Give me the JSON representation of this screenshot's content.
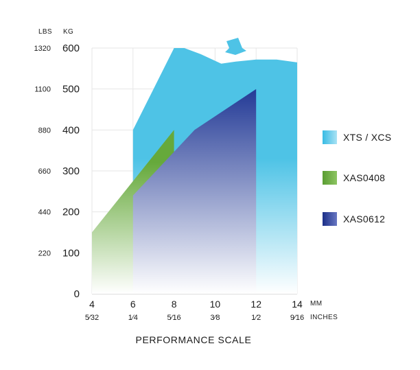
{
  "chart_data": {
    "type": "area",
    "title": "",
    "xlabel": "PERFORMANCE SCALE",
    "x_unit_primary": "MM",
    "x_unit_secondary": "INCHES",
    "y_unit_left": "LBS",
    "y_unit_right": "KG",
    "xlim": [
      4,
      14
    ],
    "ylim": [
      0,
      600
    ],
    "x_ticks": [
      {
        "mm": "4",
        "inch": "5⁄32"
      },
      {
        "mm": "6",
        "inch": "1⁄4"
      },
      {
        "mm": "8",
        "inch": "5⁄16"
      },
      {
        "mm": "10",
        "inch": "3⁄8"
      },
      {
        "mm": "12",
        "inch": "1⁄2"
      },
      {
        "mm": "14",
        "inch": "9⁄16"
      }
    ],
    "y_ticks_kg": [
      "0",
      "100",
      "200",
      "300",
      "400",
      "500",
      "600"
    ],
    "y_ticks_lbs": [
      "",
      "220",
      "440",
      "660",
      "880",
      "1100",
      "1320"
    ],
    "grid": true,
    "legend_position": "right",
    "series": [
      {
        "name": "XTS / XCS",
        "color_top": "#4ec3e6",
        "color_bottom": "#ffffff",
        "x": [
          6,
          6,
          8,
          8.5,
          9.3,
          10.3,
          11,
          12,
          13,
          14,
          14
        ],
        "y": [
          0,
          400,
          600,
          600,
          585,
          562,
          567,
          572,
          572,
          565,
          0
        ]
      },
      {
        "name": "XAS0408",
        "color_top": "#66a93b",
        "color_bottom": "#ffffff",
        "x": [
          4,
          4,
          8,
          8
        ],
        "y": [
          0,
          150,
          400,
          0
        ]
      },
      {
        "name": "XAS0612",
        "color_top": "#233a96",
        "color_bottom": "#ffffff",
        "x": [
          6,
          6,
          9,
          12,
          12
        ],
        "y": [
          0,
          240,
          400,
          500,
          0
        ]
      }
    ]
  }
}
